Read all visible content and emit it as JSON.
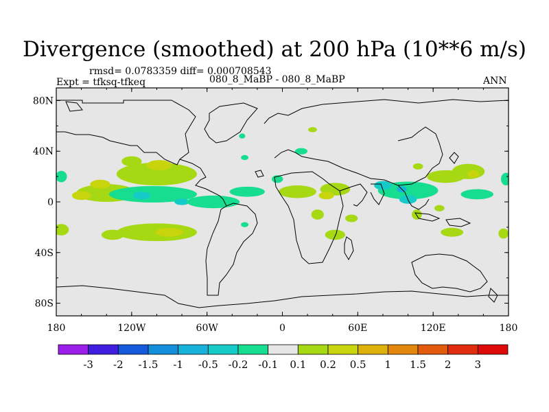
{
  "chart_data": {
    "type": "heatmap",
    "title": "Divergence (smoothed) at 200 hPa (10**6 m/s)",
    "stats_left": "rmsd= 0.0783359 diff= 0.000708543",
    "case_label": "080_8_MaBP - 080_8_MaBP",
    "expt_label": "Expt = tfksq-tfkeq",
    "season": "ANN",
    "x_ticks": [
      "180",
      "120W",
      "60W",
      "0",
      "60E",
      "120E",
      "180"
    ],
    "y_ticks": [
      "80N",
      "40N",
      "0",
      "40S",
      "80S"
    ],
    "xlim": [
      -180,
      180
    ],
    "ylim": [
      -90,
      90
    ],
    "colorbar": {
      "labels": [
        "-3",
        "-2",
        "-1.5",
        "-1",
        "-0.5",
        "-0.2",
        "-0.1",
        "0.1",
        "0.2",
        "0.5",
        "1",
        "1.5",
        "2",
        "3"
      ],
      "colors": [
        "#9b1fe8",
        "#3f1ee0",
        "#1559dd",
        "#1190d9",
        "#17b2da",
        "#16cbc7",
        "#17dd91",
        "#e6e6e6",
        "#a6d814",
        "#c8d40c",
        "#dcb10a",
        "#e2870c",
        "#e25a0e",
        "#e02c0f",
        "#dd0a0a"
      ]
    },
    "regions": [
      {
        "lon": -176,
        "lat": 20,
        "w": 9,
        "h": 9,
        "level": 6
      },
      {
        "lon": -176,
        "lat": -22,
        "w": 12,
        "h": 9,
        "level": 8
      },
      {
        "lon": -140,
        "lat": 7,
        "w": 48,
        "h": 14,
        "level": 8
      },
      {
        "lon": -160,
        "lat": 5,
        "w": 15,
        "h": 7,
        "level": 9
      },
      {
        "lon": -145,
        "lat": 14,
        "w": 16,
        "h": 7,
        "level": 9
      },
      {
        "lon": -120,
        "lat": 32,
        "w": 16,
        "h": 8,
        "level": 8
      },
      {
        "lon": -100,
        "lat": 22,
        "w": 64,
        "h": 18,
        "level": 8
      },
      {
        "lon": -98,
        "lat": 29,
        "w": 20,
        "h": 8,
        "level": 9
      },
      {
        "lon": -103,
        "lat": 6,
        "w": 70,
        "h": 13,
        "level": 6
      },
      {
        "lon": -112,
        "lat": 5,
        "w": 14,
        "h": 6,
        "level": 5
      },
      {
        "lon": -80,
        "lat": 0,
        "w": 12,
        "h": 5,
        "level": 5
      },
      {
        "lon": -100,
        "lat": -24,
        "w": 64,
        "h": 14,
        "level": 8
      },
      {
        "lon": -90,
        "lat": -24,
        "w": 22,
        "h": 7,
        "level": 9
      },
      {
        "lon": -135,
        "lat": -26,
        "w": 18,
        "h": 8,
        "level": 8
      },
      {
        "lon": -55,
        "lat": 0,
        "w": 42,
        "h": 10,
        "level": 6
      },
      {
        "lon": -28,
        "lat": 8,
        "w": 28,
        "h": 8,
        "level": 6
      },
      {
        "lon": -30,
        "lat": -18,
        "w": 6,
        "h": 4,
        "level": 6
      },
      {
        "lon": -30,
        "lat": 35,
        "w": 6,
        "h": 4,
        "level": 6
      },
      {
        "lon": -32,
        "lat": 52,
        "w": 5,
        "h": 4,
        "level": 6
      },
      {
        "lon": 15,
        "lat": 40,
        "w": 10,
        "h": 5,
        "level": 6
      },
      {
        "lon": 24,
        "lat": 57,
        "w": 7,
        "h": 4,
        "level": 8
      },
      {
        "lon": -4,
        "lat": 18,
        "w": 9,
        "h": 6,
        "level": 6
      },
      {
        "lon": 12,
        "lat": 8,
        "w": 30,
        "h": 10,
        "level": 8
      },
      {
        "lon": 28,
        "lat": -10,
        "w": 10,
        "h": 8,
        "level": 8
      },
      {
        "lon": 42,
        "lat": 10,
        "w": 24,
        "h": 10,
        "level": 8
      },
      {
        "lon": 35,
        "lat": 5,
        "w": 12,
        "h": 6,
        "level": 9
      },
      {
        "lon": 42,
        "lat": -26,
        "w": 16,
        "h": 8,
        "level": 8
      },
      {
        "lon": 55,
        "lat": -13,
        "w": 10,
        "h": 6,
        "level": 8
      },
      {
        "lon": 100,
        "lat": 9,
        "w": 48,
        "h": 14,
        "level": 6
      },
      {
        "lon": 80,
        "lat": 13,
        "w": 14,
        "h": 7,
        "level": 5
      },
      {
        "lon": 95,
        "lat": 10,
        "w": 8,
        "h": 5,
        "level": 4
      },
      {
        "lon": 100,
        "lat": 2,
        "w": 14,
        "h": 7,
        "level": 5
      },
      {
        "lon": 107,
        "lat": -10,
        "w": 8,
        "h": 8,
        "level": 8
      },
      {
        "lon": 130,
        "lat": 20,
        "w": 30,
        "h": 10,
        "level": 8
      },
      {
        "lon": 148,
        "lat": 24,
        "w": 26,
        "h": 12,
        "level": 8
      },
      {
        "lon": 152,
        "lat": 22,
        "w": 9,
        "h": 6,
        "level": 9
      },
      {
        "lon": 155,
        "lat": 6,
        "w": 26,
        "h": 8,
        "level": 6
      },
      {
        "lon": 178,
        "lat": 18,
        "w": 8,
        "h": 10,
        "level": 6
      },
      {
        "lon": 135,
        "lat": -24,
        "w": 18,
        "h": 7,
        "level": 8
      },
      {
        "lon": 176,
        "lat": -25,
        "w": 8,
        "h": 8,
        "level": 8
      },
      {
        "lon": 125,
        "lat": -5,
        "w": 8,
        "h": 5,
        "level": 8
      },
      {
        "lon": 108,
        "lat": 28,
        "w": 8,
        "h": 5,
        "level": 8
      }
    ]
  }
}
